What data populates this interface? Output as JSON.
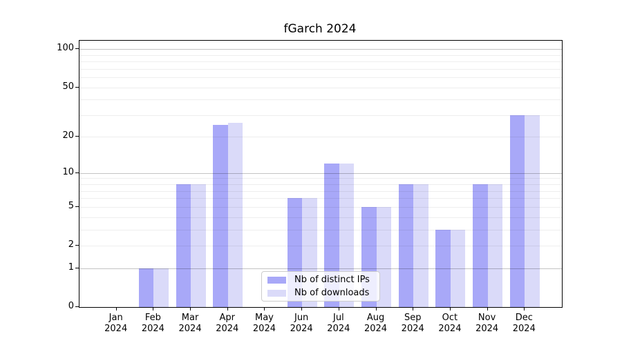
{
  "chart_data": {
    "type": "bar",
    "title": "fGarch 2024",
    "categories": [
      "Jan",
      "Feb",
      "Mar",
      "Apr",
      "May",
      "Jun",
      "Jul",
      "Aug",
      "Sep",
      "Oct",
      "Nov",
      "Dec"
    ],
    "x_tick_year": "2024",
    "series": [
      {
        "name": "Nb of distinct IPs",
        "color": "#a8a8f8",
        "values": [
          0,
          1,
          8,
          25,
          0,
          6,
          12,
          5,
          8,
          3,
          8,
          30
        ]
      },
      {
        "name": "Nb of downloads",
        "color": "#dadaf9",
        "values": [
          0,
          1,
          8,
          26,
          0,
          6,
          12,
          5,
          8,
          3,
          8,
          30
        ]
      }
    ],
    "xlabel": "",
    "ylabel": "",
    "y_axis": {
      "scale": "log1p",
      "tick_labels": [
        0,
        1,
        2,
        5,
        10,
        20,
        50,
        100
      ],
      "major_gridlines": [
        1,
        10,
        100
      ],
      "minor_gridlines": [
        2,
        3,
        4,
        5,
        6,
        7,
        8,
        9,
        20,
        30,
        40,
        50,
        60,
        70,
        80,
        90
      ],
      "range": [
        0,
        116
      ]
    },
    "grid": true,
    "legend": {
      "position": "bottom-center",
      "entries": [
        "Nb of distinct IPs",
        "Nb of downloads"
      ]
    }
  },
  "colors": {
    "bar_distinct_ips": "#a8a8f8",
    "bar_downloads": "#dadaf9",
    "axis": "#000000",
    "background": "#ffffff",
    "legend_border": "#cccccc"
  }
}
